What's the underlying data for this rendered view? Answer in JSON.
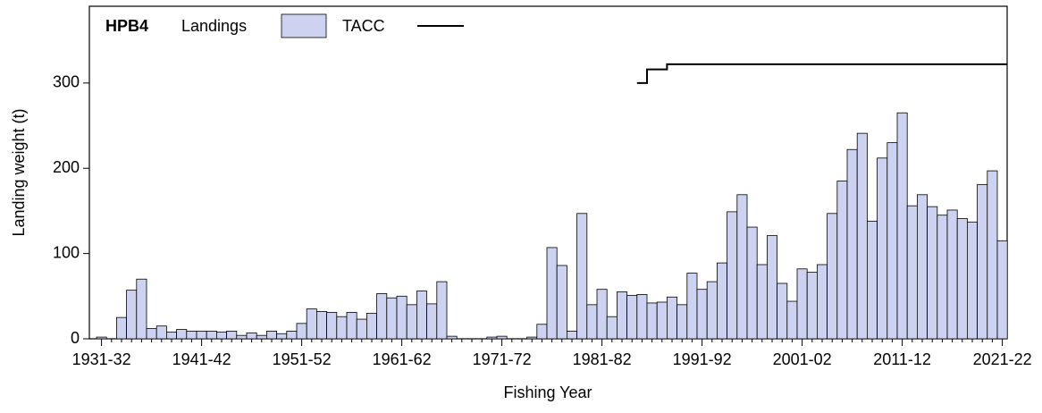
{
  "chart_data": {
    "type": "bar",
    "label": "HPB4",
    "xlabel": "Fishing Year",
    "ylabel": "Landing weight (t)",
    "categories": [
      "1931-32",
      null,
      null,
      null,
      null,
      null,
      null,
      null,
      null,
      null,
      "1941-42",
      null,
      null,
      null,
      null,
      null,
      null,
      null,
      null,
      null,
      "1951-52",
      null,
      null,
      null,
      null,
      null,
      null,
      null,
      null,
      null,
      "1961-62",
      null,
      null,
      null,
      null,
      null,
      null,
      null,
      null,
      null,
      "1971-72",
      null,
      null,
      null,
      null,
      null,
      null,
      null,
      null,
      null,
      "1981-82",
      null,
      null,
      null,
      null,
      null,
      null,
      null,
      null,
      null,
      "1991-92",
      null,
      null,
      null,
      null,
      null,
      null,
      null,
      null,
      null,
      "2001-02",
      null,
      null,
      null,
      null,
      null,
      null,
      null,
      null,
      null,
      "2011-12",
      null,
      null,
      null,
      null,
      null,
      null,
      null,
      null,
      null,
      "2021-22"
    ],
    "series": [
      {
        "name": "Landings",
        "type": "bar",
        "color": "#ccd2ef",
        "values": [
          2,
          0,
          25,
          57,
          70,
          12,
          15,
          8,
          11,
          9,
          9,
          9,
          8,
          9,
          4,
          7,
          4,
          9,
          6,
          9,
          18,
          35,
          32,
          31,
          26,
          31,
          23,
          30,
          53,
          48,
          50,
          40,
          56,
          41,
          67,
          3,
          0,
          0,
          0,
          2,
          3,
          0,
          0,
          2,
          17,
          107,
          86,
          9,
          147,
          40,
          58,
          26,
          55,
          51,
          52,
          42,
          43,
          49,
          40,
          77,
          58,
          67,
          89,
          149,
          169,
          131,
          87,
          121,
          65,
          44,
          82,
          78,
          87,
          147,
          185,
          222,
          241,
          138,
          212,
          230,
          265,
          156,
          169,
          155,
          145,
          151,
          141,
          137,
          181,
          197,
          115
        ]
      },
      {
        "name": "TACC",
        "type": "step",
        "color": "#000000",
        "values": [
          null,
          null,
          null,
          null,
          null,
          null,
          null,
          null,
          null,
          null,
          null,
          null,
          null,
          null,
          null,
          null,
          null,
          null,
          null,
          null,
          null,
          null,
          null,
          null,
          null,
          null,
          null,
          null,
          null,
          null,
          null,
          null,
          null,
          null,
          null,
          null,
          null,
          null,
          null,
          null,
          null,
          null,
          null,
          null,
          null,
          null,
          null,
          null,
          null,
          null,
          null,
          null,
          null,
          null,
          300,
          316,
          316,
          322,
          322,
          322,
          322,
          322,
          322,
          322,
          322,
          322,
          322,
          322,
          322,
          322,
          322,
          322,
          322,
          322,
          322,
          322,
          322,
          322,
          322,
          322,
          322,
          322,
          322,
          322,
          322,
          322,
          322,
          322,
          322,
          322,
          322
        ]
      }
    ],
    "ylim": [
      0,
      390
    ],
    "yticks": [
      0,
      100,
      200,
      300
    ],
    "grid": false
  }
}
